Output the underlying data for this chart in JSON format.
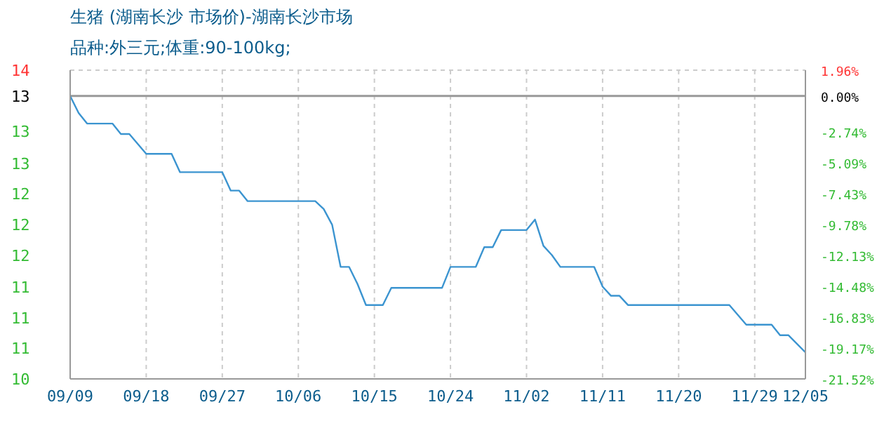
{
  "chart_data": {
    "type": "line",
    "title": "生猪 (湖南长沙 市场价)-湖南长沙市场",
    "subtitle": "品种:外三元;体重:90-100kg;",
    "x": [
      "--09-09",
      "--09-10",
      "--09-11",
      "--09-14",
      "--09-15",
      "--09-16",
      "--09-18",
      "--09-21",
      "--09-22",
      "--09-27",
      "--09-28",
      "--09-29",
      "--09-30",
      "--10-08",
      "--10-09",
      "--10-10",
      "--10-11",
      "--10-12",
      "--10-13",
      "--10-14",
      "--10-16",
      "--10-17",
      "--10-23",
      "--10-24",
      "--10-27",
      "--10-28",
      "--10-29",
      "--10-30",
      "--11-02",
      "--11-03",
      "--11-04",
      "--11-05",
      "--11-06",
      "--11-10",
      "--11-11",
      "--11-12",
      "--11-13",
      "--11-14",
      "--11-26",
      "--11-28",
      "--12-01",
      "--12-02",
      "--12-03",
      "--12-05"
    ],
    "series": [
      {
        "color": "#3b94d0",
        "axis": "y2",
        "values": [
          0,
          -1.3,
          -2.1,
          -2.1,
          -2.9,
          -2.9,
          -4.4,
          -4.4,
          -5.8,
          -5.8,
          -7.2,
          -7.2,
          -8.0,
          -8.0,
          -8.6,
          -9.8,
          -13.0,
          -13.0,
          -14.3,
          -15.9,
          -15.9,
          -14.6,
          -14.6,
          -13.0,
          -13.0,
          -11.5,
          -11.5,
          -10.2,
          -10.2,
          -9.4,
          -11.4,
          -12.1,
          -13.0,
          -13.0,
          -14.5,
          -15.2,
          -15.2,
          -15.9,
          -15.9,
          -17.4,
          -17.4,
          -18.2,
          -18.2,
          -19.5
        ]
      }
    ],
    "xlim": [
      "--09-09",
      "--12-05"
    ],
    "xticks": [
      {
        "value": "--09-09",
        "label": "09/09"
      },
      {
        "value": "--09-18",
        "label": "09/18"
      },
      {
        "value": "--09-27",
        "label": "09/27"
      },
      {
        "value": "--10-06",
        "label": "10/06"
      },
      {
        "value": "--10-15",
        "label": "10/15"
      },
      {
        "value": "--10-24",
        "label": "10/24"
      },
      {
        "value": "--11-02",
        "label": "11/02"
      },
      {
        "value": "--11-11",
        "label": "11/11"
      },
      {
        "value": "--11-20",
        "label": "11/20"
      },
      {
        "value": "--11-29",
        "label": "11/29"
      },
      {
        "value": "--12-05",
        "label": "12/05"
      }
    ],
    "ylim": [
      10.44,
      13.56
    ],
    "yticks": [
      {
        "value": 13.56,
        "label": "14"
      },
      {
        "value": 13.3,
        "label": "13"
      },
      {
        "value": 12.94,
        "label": "13"
      },
      {
        "value": 12.62,
        "label": "13"
      },
      {
        "value": 12.31,
        "label": "12"
      },
      {
        "value": 12.0,
        "label": "12"
      },
      {
        "value": 11.69,
        "label": "12"
      },
      {
        "value": 11.37,
        "label": "11"
      },
      {
        "value": 11.06,
        "label": "11"
      },
      {
        "value": 10.75,
        "label": "11"
      },
      {
        "value": 10.44,
        "label": "10"
      }
    ],
    "y2lim": [
      -21.52,
      1.96
    ],
    "y2ticks": [
      {
        "value": 1.96,
        "label": "1.96%"
      },
      {
        "value": 0,
        "label": "0.00%"
      },
      {
        "value": -2.74,
        "label": "-2.74%"
      },
      {
        "value": -5.09,
        "label": "-5.09%"
      },
      {
        "value": -7.43,
        "label": "-7.43%"
      },
      {
        "value": -9.78,
        "label": "-9.78%"
      },
      {
        "value": -12.13,
        "label": "-12.13%"
      },
      {
        "value": -14.48,
        "label": "-14.48%"
      },
      {
        "value": -16.83,
        "label": "-16.83%"
      },
      {
        "value": -19.17,
        "label": "-19.17%"
      },
      {
        "value": -21.52,
        "label": "-21.52%"
      }
    ],
    "ref_lines": [
      {
        "axis": "y2",
        "value": 0,
        "color": "#999999",
        "line_style": "solid"
      }
    ],
    "grid": true,
    "marker": "none",
    "line_style": "solid"
  }
}
